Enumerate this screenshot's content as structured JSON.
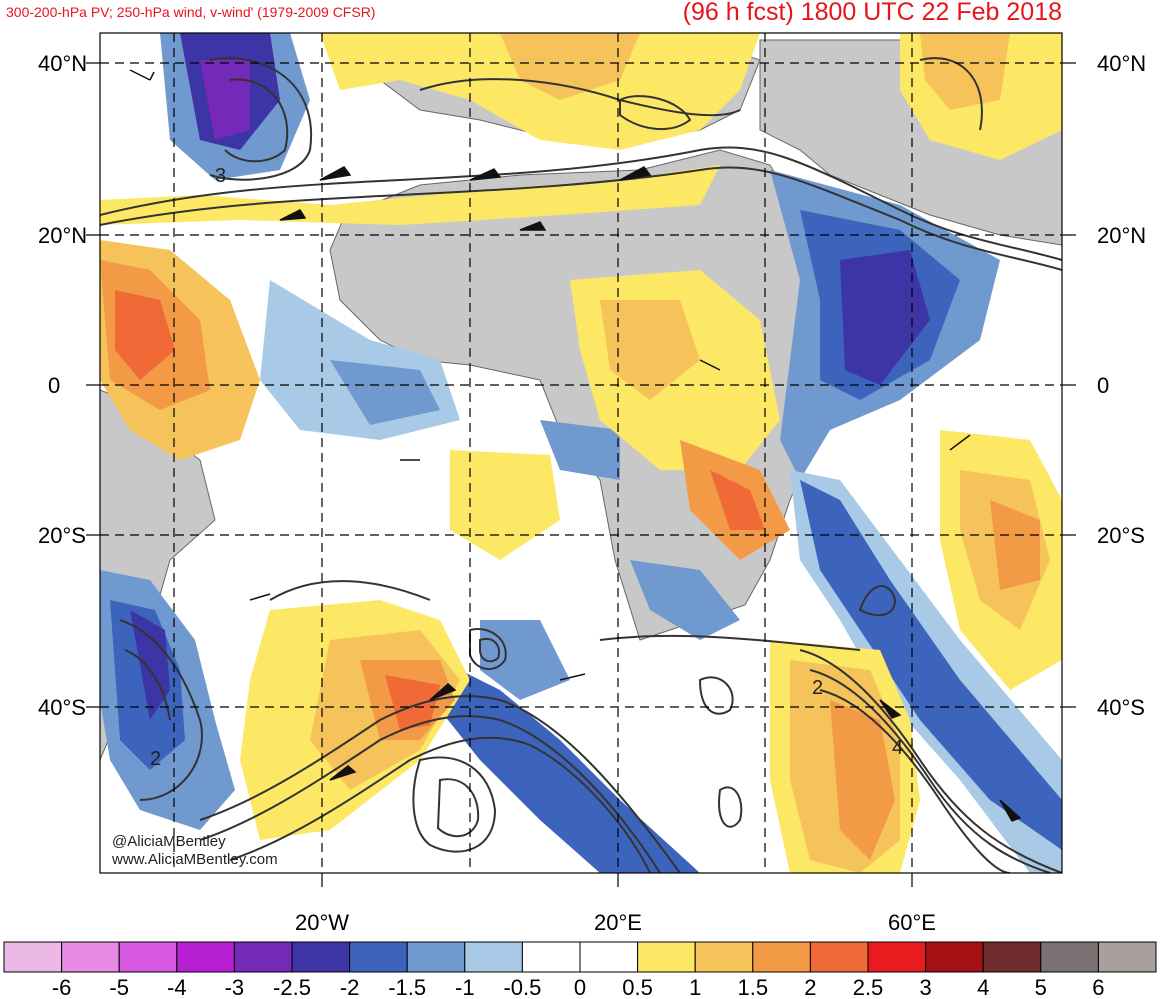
{
  "header": {
    "subtitle": "300-200-hPa PV; 250-hPa wind, v-wind' (1979-2009 CFSR)",
    "title": "(96 h fcst) 1800 UTC 22 Feb 2018"
  },
  "map": {
    "lat_labels": [
      "40°N",
      "20°N",
      "0",
      "20°S",
      "40°S"
    ],
    "lon_labels": [
      "20°W",
      "20°E",
      "60°E"
    ],
    "contour_labels": [
      "3",
      "2",
      "4",
      "2"
    ],
    "credits": [
      "@AliciaMBentley",
      "www.AliciaMBentley.com"
    ],
    "land_color": "#c8c8c8"
  },
  "colorbar": {
    "labels": [
      "-6",
      "-5",
      "-4",
      "-3",
      "-2.5",
      "-2",
      "-1.5",
      "-1",
      "-0.5",
      "0",
      "0.5",
      "1",
      "1.5",
      "2",
      "2.5",
      "3",
      "4",
      "5",
      "6"
    ],
    "colors": [
      "#ecb8e6",
      "#e68ae4",
      "#d85ae0",
      "#b61fd2",
      "#7529b8",
      "#3d34a6",
      "#3d64bc",
      "#6f99cf",
      "#a8cae6",
      "#ffffff",
      "#ffffff",
      "#fde865",
      "#f6c25a",
      "#f39a46",
      "#ef6a36",
      "#ea1b1e",
      "#a51014",
      "#6f2c2c",
      "#7a7272",
      "#a9a09d"
    ]
  }
}
